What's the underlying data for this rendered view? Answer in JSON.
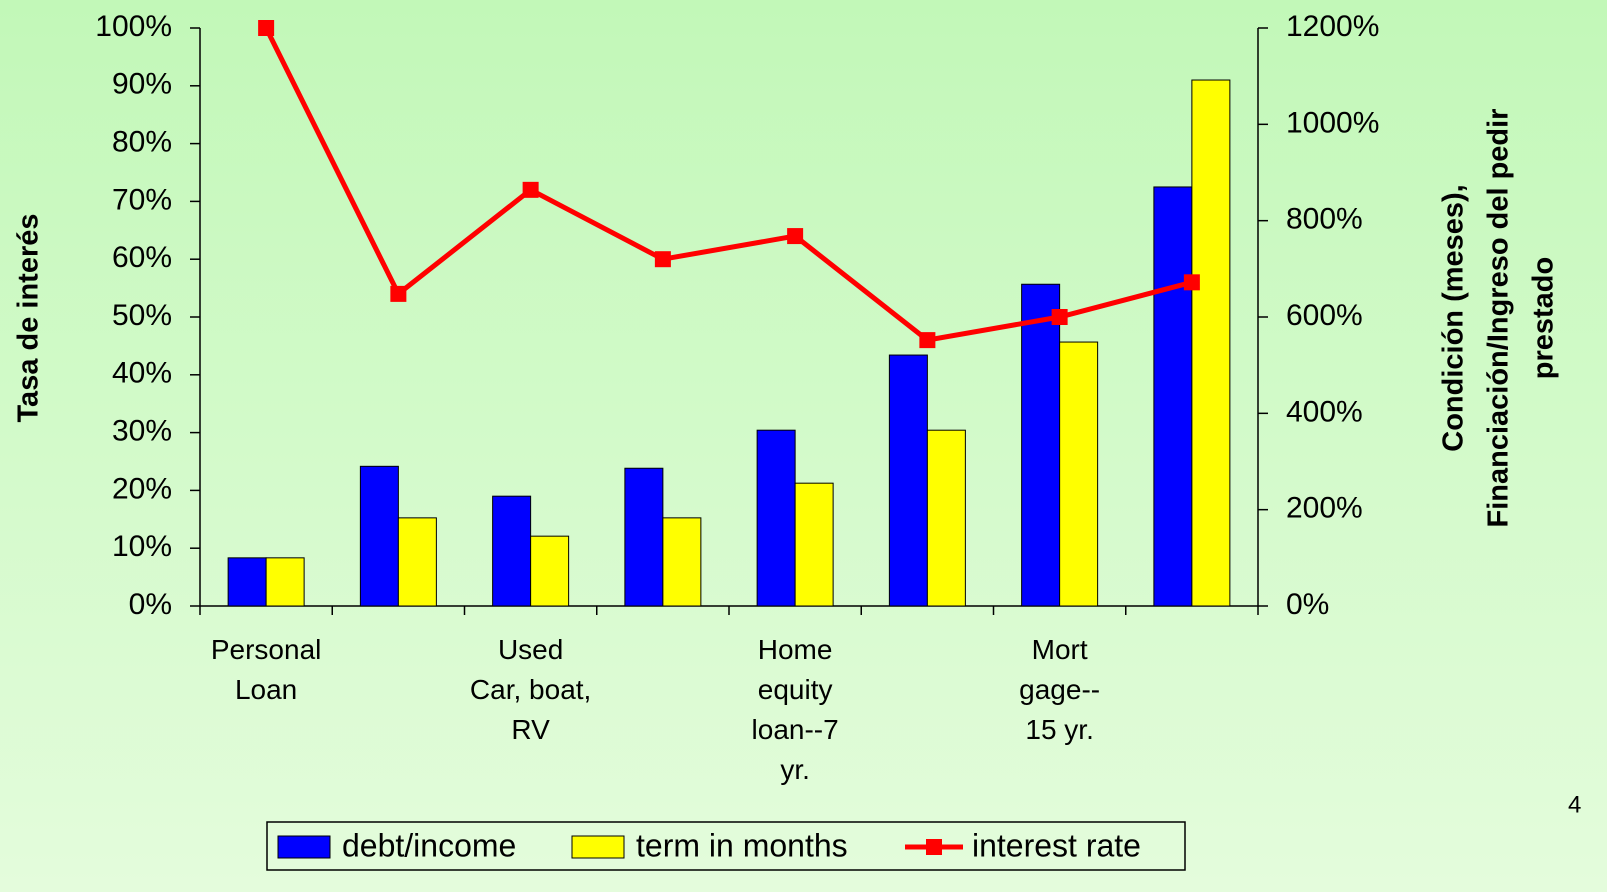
{
  "chart_data": {
    "type": "bar_line",
    "ylabel": "Tasa de interés",
    "y2label": [
      "Condición (meses),",
      "Financiación/Ingreso del pedir",
      "prestado"
    ],
    "categories": [
      "Personal\nLoan",
      null,
      "Used\nCar, boat,\nRV",
      null,
      "Home\nequity\nloan--7\nyr.",
      null,
      "Mort\ngage--\n15 yr.",
      null
    ],
    "series": [
      {
        "name": "debt/income",
        "color": "#0000ff",
        "axis": "y2",
        "kind": "bar",
        "values": [
          100,
          290,
          228,
          286,
          365,
          521,
          668,
          870
        ]
      },
      {
        "name": "term in months",
        "color": "#ffff00",
        "axis": "y2",
        "kind": "bar",
        "values": [
          100,
          183,
          145,
          183,
          255,
          365,
          548,
          1092
        ]
      },
      {
        "name": "interest rate",
        "color": "#ff0000",
        "kind": "line",
        "values": [
          100,
          54,
          72,
          60,
          64,
          46,
          50,
          56
        ]
      }
    ],
    "ylim": [
      0,
      100
    ],
    "yticks": [
      {
        "value": 0,
        "label": "0%"
      },
      {
        "value": 10,
        "label": "10%"
      },
      {
        "value": 20,
        "label": "20%"
      },
      {
        "value": 30,
        "label": "30%"
      },
      {
        "value": 40,
        "label": "40%"
      },
      {
        "value": 50,
        "label": "50%"
      },
      {
        "value": 60,
        "label": "60%"
      },
      {
        "value": 70,
        "label": "70%"
      },
      {
        "value": 80,
        "label": "80%"
      },
      {
        "value": 90,
        "label": "90%"
      },
      {
        "value": 100,
        "label": "100%"
      }
    ],
    "y2lim": [
      0,
      1200
    ],
    "y2ticks": [
      {
        "value": 0,
        "label": "0%"
      },
      {
        "value": 200,
        "label": "200%"
      },
      {
        "value": 400,
        "label": "400%"
      },
      {
        "value": 600,
        "label": "600%"
      },
      {
        "value": 800,
        "label": "800%"
      },
      {
        "value": 1000,
        "label": "1000%"
      },
      {
        "value": 1200,
        "label": "1200%"
      }
    ],
    "legend": "bottom",
    "page_number": "4"
  }
}
